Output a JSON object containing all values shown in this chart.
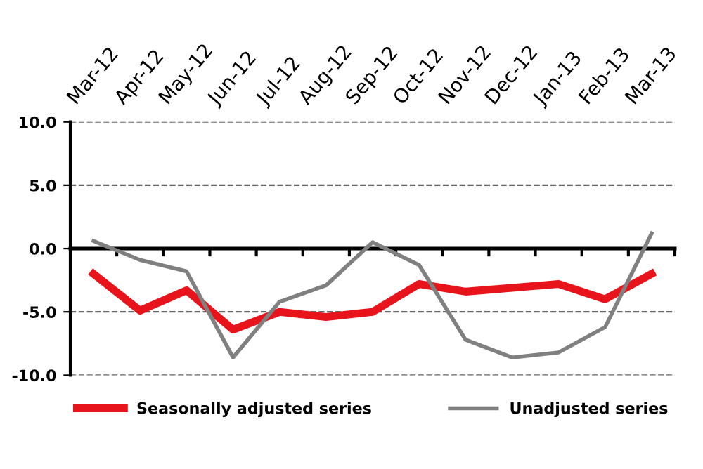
{
  "chart_data": {
    "type": "line",
    "categories": [
      "Mar-12",
      "Apr-12",
      "May-12",
      "Jun-12",
      "Jul-12",
      "Aug-12",
      "Sep-12",
      "Oct-12",
      "Nov-12",
      "Dec-12",
      "Jan-13",
      "Feb-13",
      "Mar-13"
    ],
    "series": [
      {
        "name": "Seasonally adjusted series",
        "color": "#e8141b",
        "values": [
          -2.0,
          -4.9,
          -3.3,
          -6.4,
          -5.0,
          -5.4,
          -5.0,
          -2.8,
          -3.4,
          -3.1,
          -2.8,
          -4.0,
          -2.0
        ]
      },
      {
        "name": "Unadjusted series",
        "color": "#808080",
        "values": [
          0.6,
          -0.9,
          -1.8,
          -8.6,
          -4.2,
          -2.9,
          0.5,
          -1.3,
          -7.2,
          -8.6,
          -8.2,
          -6.2,
          1.2
        ]
      }
    ],
    "ylim": [
      -10,
      10
    ],
    "yticks": [
      {
        "value": -10,
        "label": "-10.0"
      },
      {
        "value": -5,
        "label": "-5.0"
      },
      {
        "value": 0,
        "label": "0.0"
      },
      {
        "value": 5,
        "label": "5.0"
      },
      {
        "value": 10,
        "label": "10.0"
      }
    ],
    "grid": "y",
    "legend": "bottom",
    "marker": "none",
    "line_style": "solid"
  }
}
